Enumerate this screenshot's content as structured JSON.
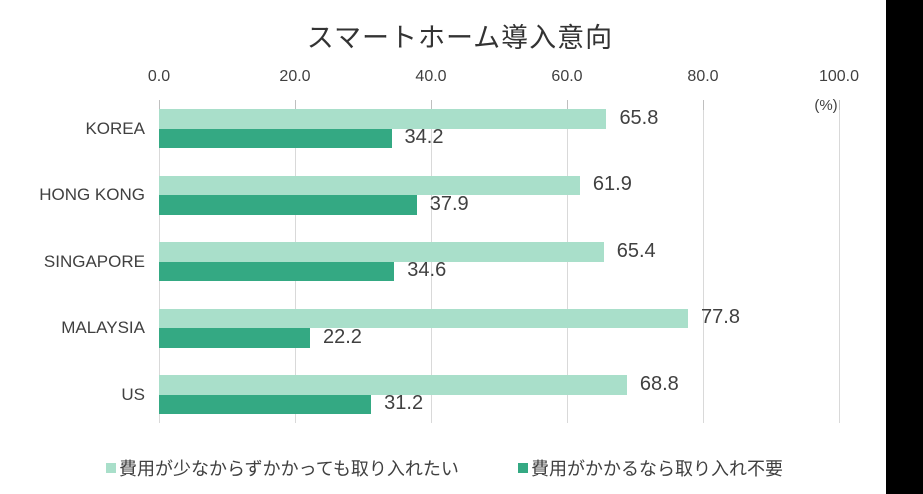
{
  "window": {
    "background_color": "#ffffff",
    "right_strip_color": "#000000"
  },
  "chart_data": {
    "type": "bar",
    "orientation": "horizontal",
    "title": "スマートホーム導入意向",
    "unit_label": "(%)",
    "categories": [
      "KOREA",
      "HONG KONG",
      "SINGAPORE",
      "MALAYSIA",
      "US"
    ],
    "series": [
      {
        "name": "費用が少なからずかかっても取り入れたい",
        "color": "#a9dfca",
        "values": [
          65.8,
          61.9,
          65.4,
          77.8,
          68.8
        ]
      },
      {
        "name": "費用がかかるなら取り入れ不要",
        "color": "#34a983",
        "values": [
          34.2,
          37.9,
          34.6,
          22.2,
          31.2
        ]
      }
    ],
    "x_axis": {
      "min": 0,
      "max": 100,
      "ticks": [
        0,
        20,
        40,
        60,
        80,
        100
      ],
      "tick_labels": [
        "0.0",
        "20.0",
        "40.0",
        "60.0",
        "80.0",
        "100.0"
      ]
    },
    "grid": true,
    "value_labels": true,
    "legend_position": "bottom",
    "text_color": "#404040",
    "gridline_color": "#d9d9d9",
    "tick_color": "#bfbfbf"
  }
}
